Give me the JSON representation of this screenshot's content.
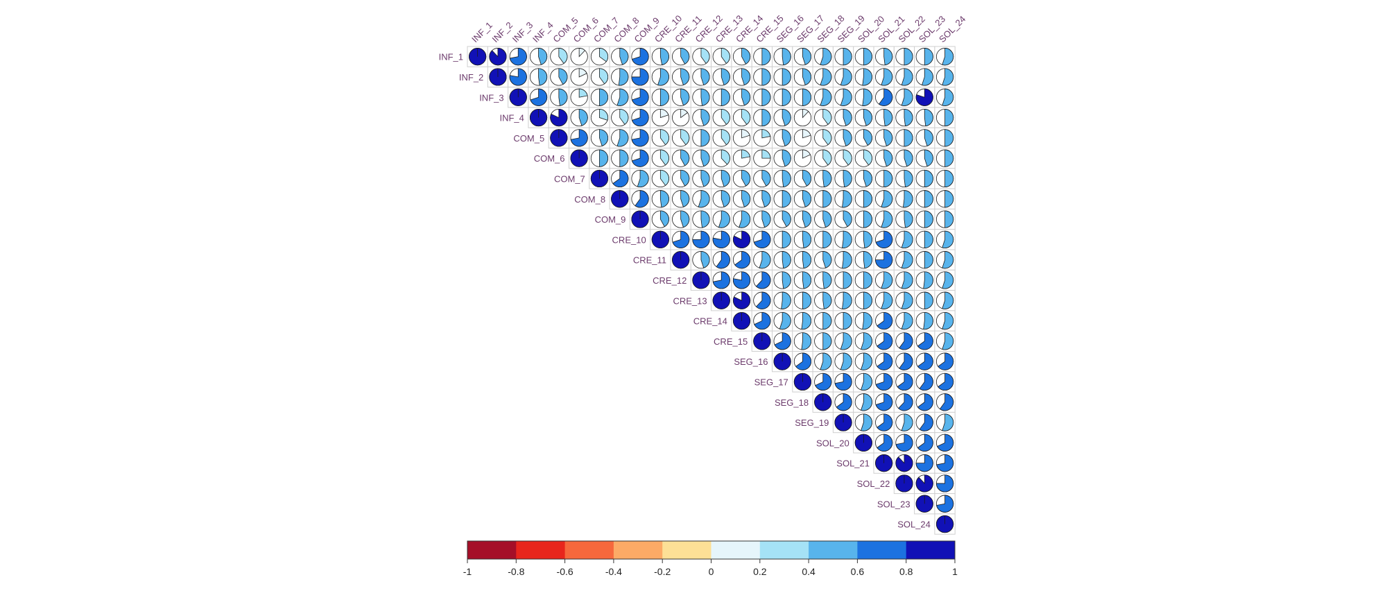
{
  "chart_data": {
    "type": "heatmap",
    "method": "pie",
    "layout": "upper",
    "variables": [
      "INF_1",
      "INF_2",
      "INF_3",
      "INF_4",
      "COM_5",
      "COM_6",
      "COM_7",
      "COM_8",
      "COM_9",
      "CRE_10",
      "CRE_11",
      "CRE_12",
      "CRE_13",
      "CRE_14",
      "CRE_15",
      "SEG_16",
      "SEG_17",
      "SEG_18",
      "SEG_19",
      "SOL_20",
      "SOL_21",
      "SOL_22",
      "SOL_23",
      "SOL_24"
    ],
    "upper_rows": [
      [
        1.0,
        0.88,
        0.72,
        0.45,
        0.4,
        0.12,
        0.35,
        0.45,
        0.7,
        0.47,
        0.42,
        0.4,
        0.4,
        0.42,
        0.5,
        0.48,
        0.45,
        0.55,
        0.5,
        0.5,
        0.48,
        0.5,
        0.5,
        0.55
      ],
      [
        1.0,
        0.78,
        0.48,
        0.42,
        0.18,
        0.4,
        0.52,
        0.75,
        0.55,
        0.45,
        0.45,
        0.45,
        0.45,
        0.5,
        0.5,
        0.45,
        0.55,
        0.55,
        0.52,
        0.55,
        0.55,
        0.55,
        0.55
      ],
      [
        1.0,
        0.7,
        0.48,
        0.22,
        0.5,
        0.55,
        0.7,
        0.5,
        0.45,
        0.48,
        0.5,
        0.45,
        0.5,
        0.5,
        0.5,
        0.55,
        0.55,
        0.52,
        0.6,
        0.55,
        0.8,
        0.55
      ],
      [
        1.0,
        0.82,
        0.45,
        0.3,
        0.4,
        0.7,
        0.2,
        0.15,
        0.45,
        0.4,
        0.4,
        0.5,
        0.45,
        0.12,
        0.4,
        0.45,
        0.45,
        0.48,
        0.48,
        0.48,
        0.5
      ],
      [
        1.0,
        0.72,
        0.45,
        0.55,
        0.72,
        0.4,
        0.4,
        0.5,
        0.4,
        0.2,
        0.22,
        0.45,
        0.2,
        0.4,
        0.45,
        0.42,
        0.45,
        0.5,
        0.45,
        0.5
      ],
      [
        1.0,
        0.5,
        0.5,
        0.7,
        0.4,
        0.42,
        0.45,
        0.38,
        0.22,
        0.25,
        0.45,
        0.18,
        0.4,
        0.4,
        0.4,
        0.45,
        0.45,
        0.45,
        0.5
      ],
      [
        1.0,
        0.65,
        0.55,
        0.4,
        0.42,
        0.45,
        0.45,
        0.42,
        0.42,
        0.48,
        0.42,
        0.48,
        0.48,
        0.45,
        0.5,
        0.48,
        0.5,
        0.5
      ],
      [
        1.0,
        0.6,
        0.48,
        0.45,
        0.55,
        0.45,
        0.45,
        0.45,
        0.5,
        0.45,
        0.5,
        0.52,
        0.5,
        0.55,
        0.52,
        0.5,
        0.5
      ],
      [
        1.0,
        0.42,
        0.45,
        0.48,
        0.55,
        0.55,
        0.45,
        0.42,
        0.45,
        0.45,
        0.42,
        0.5,
        0.55,
        0.48,
        0.5,
        0.5
      ],
      [
        1.0,
        0.7,
        0.75,
        0.78,
        0.82,
        0.7,
        0.5,
        0.48,
        0.5,
        0.52,
        0.48,
        0.7,
        0.55,
        0.5,
        0.55
      ],
      [
        1.0,
        0.45,
        0.6,
        0.65,
        0.55,
        0.48,
        0.48,
        0.45,
        0.52,
        0.48,
        0.75,
        0.55,
        0.5,
        0.55
      ],
      [
        1.0,
        0.72,
        0.78,
        0.62,
        0.48,
        0.48,
        0.48,
        0.5,
        0.5,
        0.55,
        0.55,
        0.52,
        0.55
      ],
      [
        1.0,
        0.82,
        0.62,
        0.52,
        0.5,
        0.48,
        0.52,
        0.5,
        0.55,
        0.55,
        0.5,
        0.55
      ],
      [
        1.0,
        0.68,
        0.55,
        0.52,
        0.5,
        0.5,
        0.52,
        0.65,
        0.55,
        0.52,
        0.55
      ],
      [
        1.0,
        0.68,
        0.52,
        0.5,
        0.55,
        0.55,
        0.65,
        0.6,
        0.65,
        0.55
      ],
      [
        1.0,
        0.65,
        0.55,
        0.55,
        0.55,
        0.65,
        0.6,
        0.65,
        0.65
      ],
      [
        1.0,
        0.68,
        0.72,
        0.55,
        0.7,
        0.65,
        0.6,
        0.65
      ],
      [
        1.0,
        0.65,
        0.55,
        0.7,
        0.62,
        0.65,
        0.6
      ],
      [
        1.0,
        0.55,
        0.65,
        0.55,
        0.6,
        0.55
      ],
      [
        1.0,
        0.65,
        0.72,
        0.65,
        0.68
      ],
      [
        1.0,
        0.88,
        0.75,
        0.72
      ],
      [
        1.0,
        0.88,
        0.75
      ],
      [
        1.0,
        0.72
      ],
      [
        1.0
      ]
    ],
    "colorbar": {
      "ticks": [
        "-1",
        "-0.8",
        "-0.6",
        "-0.4",
        "-0.2",
        "0",
        "0.2",
        "0.4",
        "0.6",
        "0.8",
        "1"
      ],
      "colors": [
        "#a50f28",
        "#e8261c",
        "#f6683c",
        "#fcaa66",
        "#fde096",
        "#e6f5fb",
        "#a5e2f6",
        "#58b4ec",
        "#1c72e0",
        "#1111b6"
      ]
    }
  }
}
